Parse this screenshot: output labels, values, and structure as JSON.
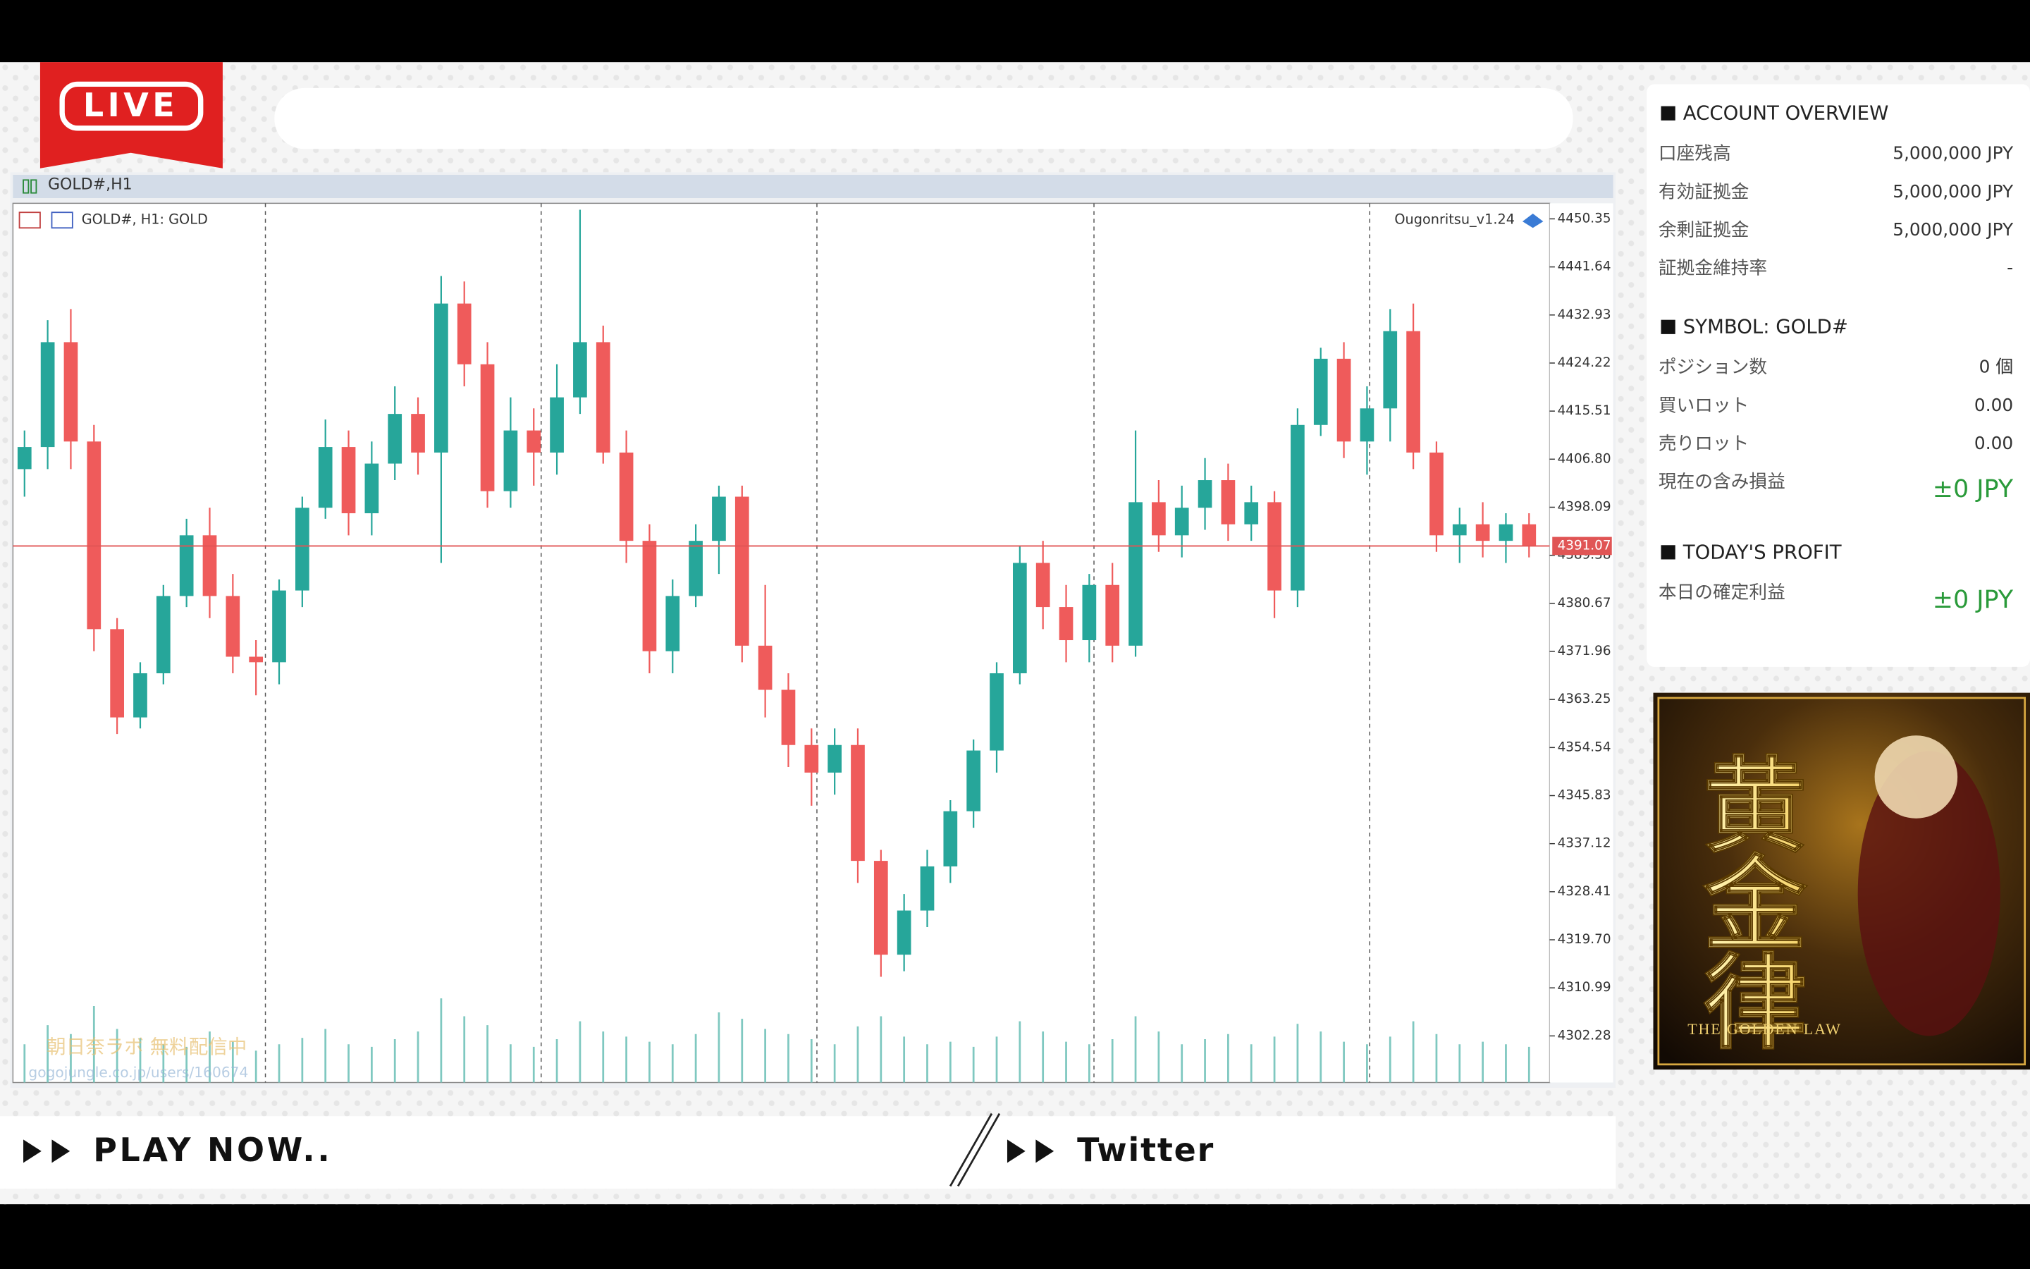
{
  "header": {
    "live_badge": "LIVE"
  },
  "chart_window": {
    "title": "GOLD#,H1"
  },
  "chart_data": {
    "type": "candlestick",
    "symbol_label": "GOLD#, H1:  GOLD",
    "indicator_label": "Ougonritsu_v1.24",
    "watermark": [
      "朝日奈ラボ 無料配信中",
      "gogojungle.co.jp/users/160674"
    ],
    "open": [
      4405,
      4409,
      4428,
      4410,
      4376,
      4360,
      4368,
      4382,
      4393,
      4382,
      4371,
      4370,
      4383,
      4398,
      4409,
      4397,
      4406,
      4415,
      4408,
      4435,
      4424,
      4401,
      4412,
      4408,
      4418,
      4428,
      4408,
      4392,
      4372,
      4382,
      4392,
      4400,
      4373,
      4365,
      4355,
      4350,
      4355,
      4334,
      4317,
      4325,
      4333,
      4343,
      4354,
      4368,
      4388,
      4380,
      4374,
      4384,
      4373,
      4399,
      4393,
      4398,
      4403,
      4395,
      4399,
      4383,
      4413,
      4425,
      4410,
      4416,
      4430,
      4408,
      4393,
      4395,
      4392,
      4395
    ],
    "high": [
      4412,
      4432,
      4434,
      4413,
      4378,
      4370,
      4384,
      4396,
      4398,
      4386,
      4374,
      4385,
      4400,
      4414,
      4412,
      4410,
      4420,
      4418,
      4440,
      4439,
      4428,
      4418,
      4416,
      4424,
      4452,
      4431,
      4412,
      4395,
      4385,
      4395,
      4402,
      4402,
      4384,
      4368,
      4358,
      4358,
      4358,
      4336,
      4328,
      4336,
      4345,
      4356,
      4370,
      4391,
      4392,
      4384,
      4386,
      4388,
      4412,
      4403,
      4402,
      4407,
      4406,
      4402,
      4401,
      4416,
      4427,
      4428,
      4420,
      4434,
      4435,
      4410,
      4398,
      4399,
      4397,
      4397
    ],
    "low": [
      4400,
      4405,
      4405,
      4372,
      4357,
      4358,
      4366,
      4380,
      4378,
      4368,
      4364,
      4366,
      4380,
      4396,
      4393,
      4393,
      4403,
      4404,
      4388,
      4420,
      4398,
      4398,
      4402,
      4404,
      4415,
      4406,
      4388,
      4368,
      4368,
      4380,
      4386,
      4370,
      4360,
      4351,
      4344,
      4346,
      4330,
      4313,
      4314,
      4322,
      4330,
      4340,
      4350,
      4366,
      4376,
      4370,
      4370,
      4370,
      4371,
      4390,
      4389,
      4394,
      4392,
      4392,
      4378,
      4380,
      4411,
      4407,
      4404,
      4410,
      4405,
      4390,
      4388,
      4389,
      4388,
      4389
    ],
    "close": [
      4409,
      4428,
      4410,
      4376,
      4360,
      4368,
      4382,
      4393,
      4382,
      4371,
      4370,
      4383,
      4398,
      4409,
      4397,
      4406,
      4415,
      4408,
      4435,
      4424,
      4401,
      4412,
      4408,
      4418,
      4428,
      4408,
      4392,
      4372,
      4382,
      4392,
      4400,
      4373,
      4365,
      4355,
      4350,
      4355,
      4334,
      4317,
      4325,
      4333,
      4343,
      4354,
      4368,
      4388,
      4380,
      4374,
      4384,
      4373,
      4399,
      4393,
      4398,
      4403,
      4395,
      4399,
      4383,
      4413,
      4425,
      4410,
      4416,
      4430,
      4408,
      4393,
      4395,
      4392,
      4395,
      4391.07
    ],
    "volume": [
      30,
      45,
      38,
      60,
      42,
      35,
      30,
      28,
      40,
      32,
      25,
      30,
      35,
      42,
      30,
      28,
      34,
      40,
      66,
      52,
      45,
      30,
      28,
      34,
      48,
      40,
      36,
      32,
      30,
      38,
      55,
      50,
      42,
      38,
      34,
      30,
      44,
      52,
      36,
      30,
      32,
      28,
      36,
      48,
      40,
      32,
      30,
      34,
      52,
      40,
      30,
      34,
      38,
      30,
      36,
      46,
      40,
      32,
      30,
      36,
      48,
      38,
      30,
      32,
      30,
      28
    ],
    "up_color": "#26a69a",
    "down_color": "#ef5b5b",
    "current_price": 4391.07,
    "current_price_color": "#e05555",
    "ylim": [
      4293.83,
      4453.17
    ],
    "yticks": [
      4450.35,
      4441.64,
      4432.93,
      4424.22,
      4415.51,
      {
        "value": 4406.8,
        "label": "4406.80"
      },
      4398.09,
      4389.38,
      4380.67,
      4371.96,
      4363.25,
      4354.54,
      4345.83,
      4337.12,
      4328.41,
      {
        "value": 4319.7,
        "label": "4319.70"
      },
      4310.99,
      4302.28
    ]
  },
  "account_panel": {
    "sections": [
      {
        "title": "ACCOUNT OVERVIEW",
        "rows": [
          {
            "label": "口座残高",
            "value": "5,000,000 JPY"
          },
          {
            "label": "有効証拠金",
            "value": "5,000,000 JPY"
          },
          {
            "label": "余剰証拠金",
            "value": "5,000,000 JPY"
          },
          {
            "label": "証拠金維持率",
            "value": "-"
          }
        ]
      },
      {
        "title": "SYMBOL: GOLD#",
        "rows": [
          {
            "label": "ポジション数",
            "value": "0 個"
          },
          {
            "label": "買いロット",
            "value": "0.00"
          },
          {
            "label": "売りロット",
            "value": "0.00"
          },
          {
            "label": "現在の含み損益",
            "value": "±0 JPY"
          }
        ]
      },
      {
        "title": "TODAY'S PROFIT",
        "rows": [
          {
            "label": "本日の確定利益",
            "value": "±0 JPY"
          }
        ]
      }
    ]
  },
  "banner": {
    "title": "黄金律",
    "subtitle": "THE GOLDEN LAW"
  },
  "footer": {
    "play": "PLAY NOW..",
    "twitter": "Twitter"
  }
}
